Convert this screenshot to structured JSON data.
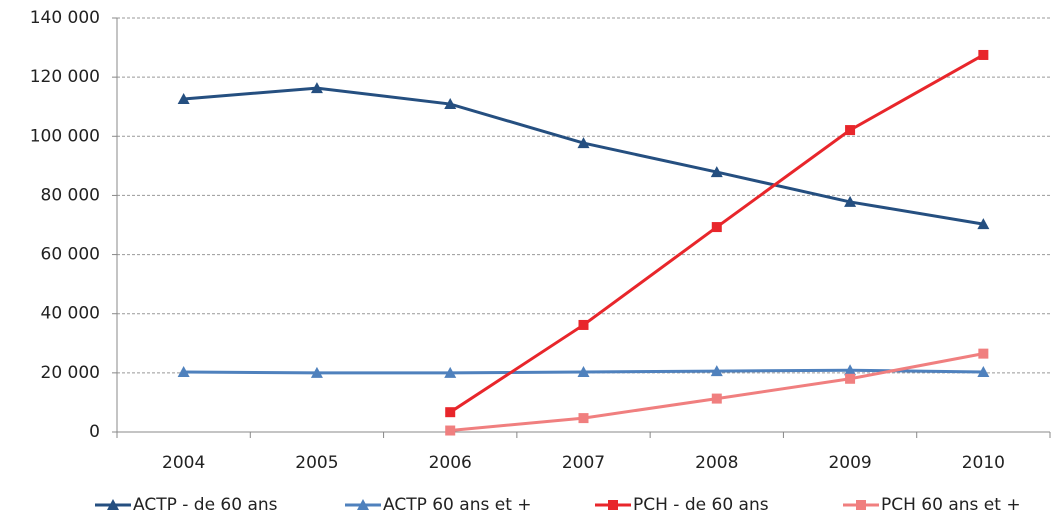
{
  "chart_data": {
    "type": "line",
    "categories": [
      "2004",
      "2005",
      "2006",
      "2007",
      "2008",
      "2009",
      "2010"
    ],
    "series": [
      {
        "name": "ACTP - de 60 ans",
        "color": "#254f80",
        "marker": "triangle",
        "values": [
          112600,
          116300,
          110900,
          97700,
          87900,
          77800,
          70300
        ]
      },
      {
        "name": "ACTP 60 ans et +",
        "color": "#4f81bd",
        "marker": "triangle",
        "values": [
          20300,
          20000,
          20000,
          20300,
          20600,
          20900,
          20300
        ]
      },
      {
        "name": "PCH - de 60 ans",
        "color": "#e8262b",
        "marker": "square",
        "values": [
          null,
          null,
          6700,
          36200,
          69300,
          102100,
          127500
        ]
      },
      {
        "name": "PCH 60 ans et +",
        "color": "#f07f7f",
        "marker": "square",
        "values": [
          null,
          null,
          500,
          4700,
          11300,
          18000,
          26500
        ]
      }
    ],
    "ylim": [
      0,
      140000
    ],
    "yticks": [
      0,
      {
        "value": 20000,
        "label": "20 000"
      },
      {
        "value": 40000,
        "label": "40 000"
      },
      {
        "value": 60000,
        "label": "60 000"
      },
      {
        "value": 80000,
        "label": "80 000"
      },
      {
        "value": 100000,
        "label": "100 000"
      },
      {
        "value": 120000,
        "label": "120 000"
      },
      {
        "value": 140000,
        "label": "140 000"
      }
    ],
    "grid": true,
    "legend": "bottom"
  }
}
